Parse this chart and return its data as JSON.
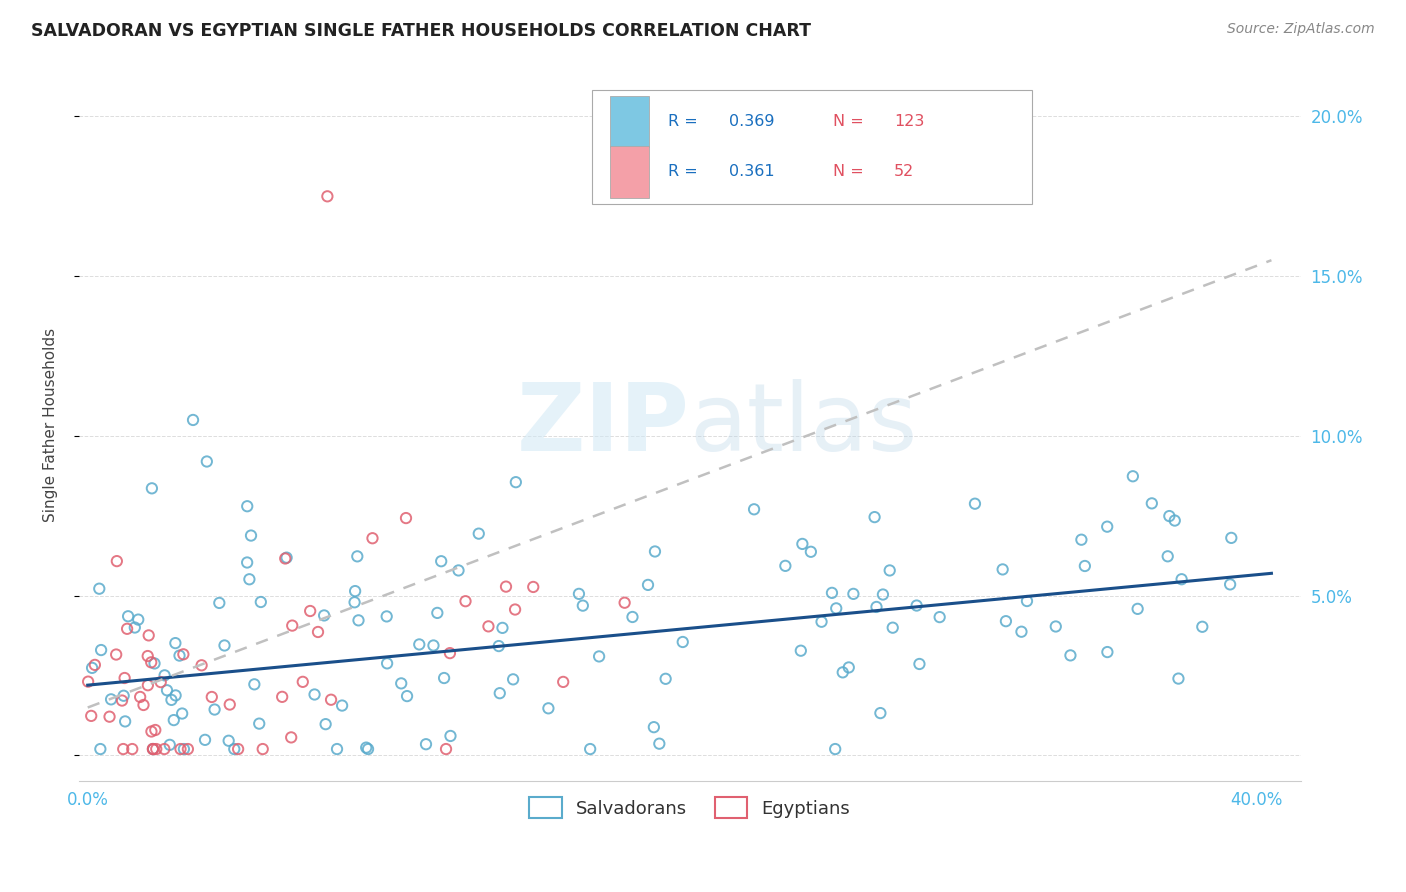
{
  "title": "SALVADORAN VS EGYPTIAN SINGLE FATHER HOUSEHOLDS CORRELATION CHART",
  "source": "Source: ZipAtlas.com",
  "ylabel": "Single Father Households",
  "salvadorans_color": "#7ec8e3",
  "salvadorans_edge": "#5aabcc",
  "egyptians_color": "#f4a0a8",
  "egyptians_edge": "#e06070",
  "trend_sal_color": "#1a4f8a",
  "trend_egy_color": "#c0c0c0",
  "R_sal": 0.369,
  "N_sal": 123,
  "R_egy": 0.361,
  "N_egy": 52,
  "legend_R_color": "#1a6fbf",
  "legend_N_color": "#e05060",
  "watermark_color": "#d0e8f5",
  "background_color": "#ffffff",
  "grid_color": "#dddddd",
  "tick_color": "#4db8e8",
  "title_color": "#222222",
  "source_color": "#888888",
  "ylabel_color": "#444444",
  "xlim": [
    -0.003,
    0.415
  ],
  "ylim": [
    -0.008,
    0.215
  ],
  "x_ticks": [
    0.0,
    0.05,
    0.1,
    0.15,
    0.2,
    0.25,
    0.3,
    0.35,
    0.4
  ],
  "y_ticks": [
    0.0,
    0.05,
    0.1,
    0.15,
    0.2
  ],
  "sal_trend_x": [
    0.0,
    0.405
  ],
  "sal_trend_y": [
    0.022,
    0.057
  ],
  "egy_trend_x": [
    0.0,
    0.405
  ],
  "egy_trend_y": [
    0.015,
    0.155
  ]
}
